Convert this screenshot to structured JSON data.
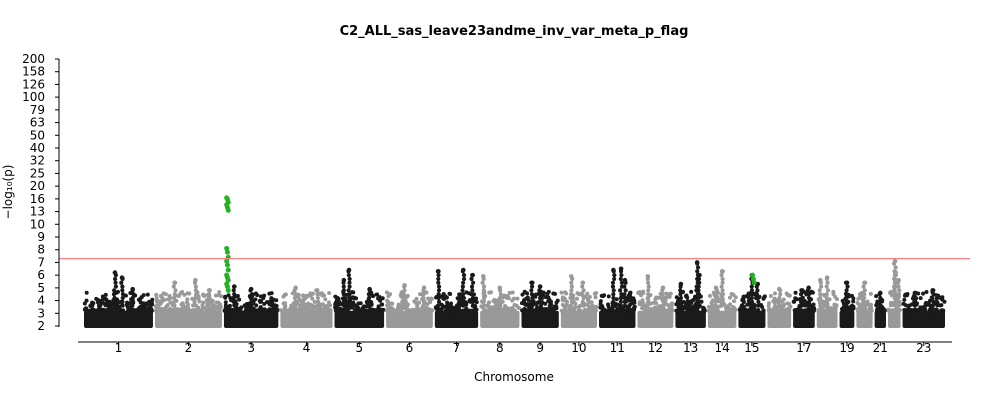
{
  "chart_data": {
    "type": "scatter",
    "title": "C2_ALL_sas_leave23andme_inv_var_meta_p_flag",
    "xlabel": "Chromosome",
    "ylabel": "−log₁₀(p)",
    "y_scale": "piecewise: linear 2–16, compressed above 16",
    "y_ticks": [
      2,
      3,
      4,
      5,
      6,
      7,
      8,
      9,
      10,
      13,
      16,
      20,
      25,
      32,
      40,
      50,
      63,
      79,
      100,
      126,
      158,
      200
    ],
    "ylim": [
      2,
      200
    ],
    "x_tick_labels": [
      "1",
      "2",
      "3",
      "4",
      "5",
      "6",
      "7",
      "8",
      "9",
      "10",
      "11",
      "12",
      "13",
      "14",
      "15",
      "17",
      "19",
      "21",
      "23"
    ],
    "genome_wide_significance": 7.3,
    "grid": false,
    "colors": {
      "odd_chromosome": "#1a1a1a",
      "even_chromosome": "#999999",
      "significant_hit": "#22b322",
      "threshold_line": "#ff8080"
    },
    "chromosomes": [
      {
        "chr": "1",
        "peaks": [
          [
            0.45,
            6.2
          ],
          [
            0.55,
            5.8
          ],
          [
            0.7,
            4.9
          ]
        ]
      },
      {
        "chr": "2",
        "peaks": [
          [
            0.3,
            5.4
          ],
          [
            0.6,
            5.6
          ],
          [
            0.8,
            4.8
          ]
        ]
      },
      {
        "chr": "3",
        "peaks": [
          [
            0.2,
            5.1
          ],
          [
            0.5,
            4.9
          ]
        ]
      },
      {
        "chr": "4",
        "peaks": [
          [
            0.3,
            5.0
          ],
          [
            0.7,
            4.8
          ]
        ]
      },
      {
        "chr": "5",
        "peaks": [
          [
            0.2,
            5.6
          ],
          [
            0.3,
            6.4
          ],
          [
            0.7,
            4.9
          ]
        ]
      },
      {
        "chr": "6",
        "peaks": [
          [
            0.4,
            5.2
          ],
          [
            0.8,
            5.0
          ]
        ]
      },
      {
        "chr": "7",
        "peaks": [
          [
            0.1,
            6.3
          ],
          [
            0.65,
            6.4
          ],
          [
            0.85,
            6.0
          ]
        ]
      },
      {
        "chr": "8",
        "peaks": [
          [
            0.1,
            5.9
          ],
          [
            0.5,
            5.0
          ]
        ]
      },
      {
        "chr": "9",
        "peaks": [
          [
            0.3,
            5.4
          ],
          [
            0.5,
            5.1
          ]
        ]
      },
      {
        "chr": "10",
        "peaks": [
          [
            0.3,
            5.9
          ],
          [
            0.6,
            5.4
          ]
        ]
      },
      {
        "chr": "11",
        "peaks": [
          [
            0.4,
            6.4
          ],
          [
            0.6,
            6.5
          ],
          [
            0.7,
            5.6
          ]
        ]
      },
      {
        "chr": "12",
        "peaks": [
          [
            0.3,
            5.9
          ],
          [
            0.7,
            5.0
          ]
        ]
      },
      {
        "chr": "13",
        "peaks": [
          [
            0.2,
            5.3
          ],
          [
            0.7,
            7.0
          ],
          [
            0.75,
            6.0
          ]
        ]
      },
      {
        "chr": "14",
        "peaks": [
          [
            0.3,
            5.0
          ],
          [
            0.5,
            6.3
          ]
        ]
      },
      {
        "chr": "15",
        "peaks": [
          [
            0.5,
            6.0
          ],
          [
            0.7,
            5.3
          ]
        ]
      },
      {
        "chr": "16",
        "peaks": [
          [
            0.5,
            4.9
          ]
        ]
      },
      {
        "chr": "17",
        "peaks": [
          [
            0.4,
            4.8
          ],
          [
            0.7,
            5.0
          ]
        ]
      },
      {
        "chr": "18",
        "peaks": [
          [
            0.2,
            5.6
          ],
          [
            0.5,
            5.8
          ]
        ]
      },
      {
        "chr": "19",
        "peaks": [
          [
            0.5,
            5.4
          ]
        ]
      },
      {
        "chr": "20",
        "peaks": [
          [
            0.5,
            5.4
          ]
        ]
      },
      {
        "chr": "21",
        "peaks": [
          [
            0.5,
            4.6
          ]
        ]
      },
      {
        "chr": "22",
        "peaks": [
          [
            0.55,
            7.1
          ],
          [
            0.6,
            6.2
          ],
          [
            0.8,
            5.6
          ]
        ]
      },
      {
        "chr": "23",
        "peaks": [
          [
            0.3,
            4.6
          ],
          [
            0.7,
            4.8
          ]
        ]
      }
    ],
    "significant_hits": [
      {
        "chr": "3",
        "values": [
          16.3,
          15.9,
          15.2,
          14.6,
          14.0,
          13.3,
          8.1,
          7.8,
          7.4,
          7.1,
          6.8,
          6.4,
          6.0,
          5.8,
          5.6,
          5.3,
          5.1,
          4.8
        ]
      },
      {
        "chr": "15",
        "values": [
          6.0,
          5.7,
          5.4
        ]
      }
    ]
  }
}
